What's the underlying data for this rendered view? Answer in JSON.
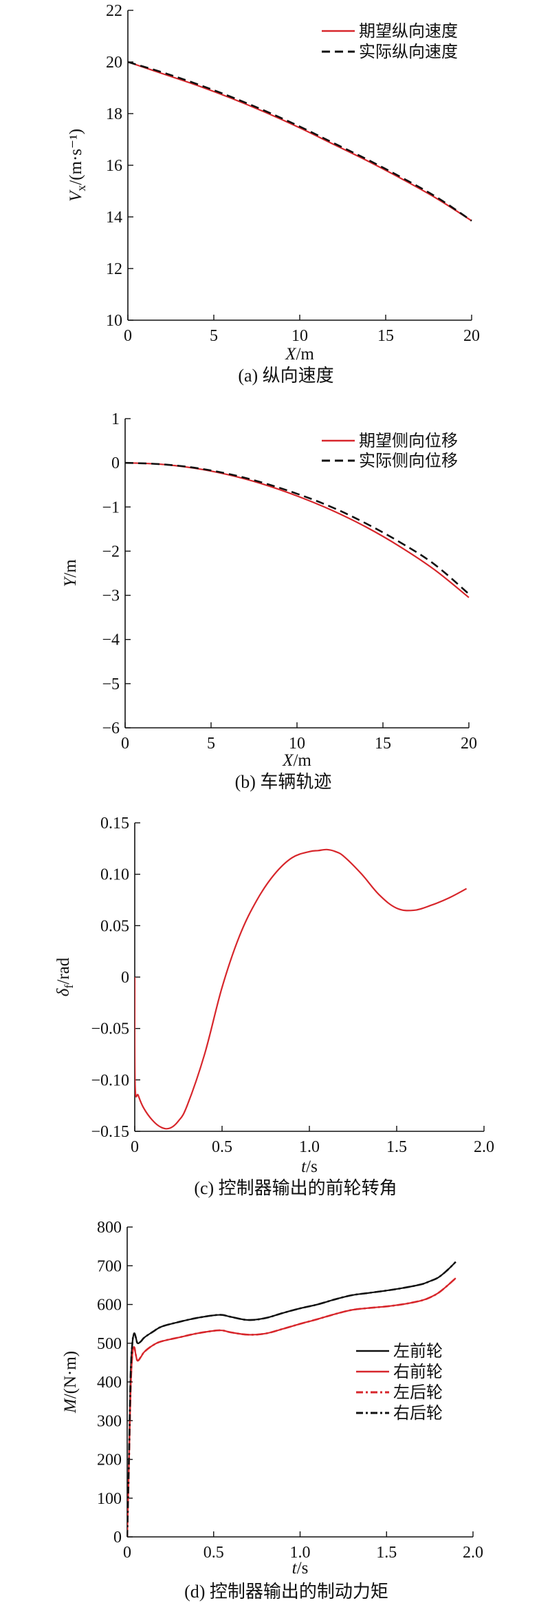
{
  "chart_data": [
    {
      "type": "line",
      "caption": "(a) 纵向速度",
      "xlabel": "X/m",
      "ylabel": "V_x/(m·s⁻¹)",
      "xlim": [
        0,
        20
      ],
      "ylim": [
        10,
        22
      ],
      "xticks": [
        0,
        5,
        10,
        15,
        20
      ],
      "yticks": [
        10,
        12,
        14,
        16,
        18,
        20,
        22
      ],
      "legend_position": "top-right",
      "series": [
        {
          "name": "期望纵向速度",
          "color": "#d7262b",
          "style": "solid",
          "x": [
            0,
            2,
            4,
            6,
            8,
            10,
            12,
            14,
            16,
            18,
            20
          ],
          "y": [
            20.0,
            19.55,
            19.1,
            18.6,
            18.05,
            17.45,
            16.8,
            16.15,
            15.45,
            14.7,
            13.85
          ]
        },
        {
          "name": "实际纵向速度",
          "color": "#111111",
          "style": "dashed",
          "x": [
            0,
            2,
            4,
            6,
            8,
            10,
            12,
            14,
            16,
            18,
            20
          ],
          "y": [
            20.0,
            19.6,
            19.15,
            18.65,
            18.1,
            17.5,
            16.85,
            16.2,
            15.5,
            14.75,
            13.85
          ]
        }
      ]
    },
    {
      "type": "line",
      "caption": "(b) 车辆轨迹",
      "xlabel": "X/m",
      "ylabel": "Y/m",
      "xlim": [
        0,
        20
      ],
      "ylim": [
        -6,
        1
      ],
      "xticks": [
        0,
        5,
        10,
        15,
        20
      ],
      "yticks": [
        -6,
        -5,
        -4,
        -3,
        -2,
        -1,
        0,
        1
      ],
      "legend_position": "top-right",
      "series": [
        {
          "name": "期望侧向位移",
          "color": "#d7262b",
          "style": "solid",
          "x": [
            0,
            2,
            4,
            6,
            8,
            10,
            12,
            14,
            16,
            18,
            20
          ],
          "y": [
            0,
            -0.03,
            -0.12,
            -0.27,
            -0.48,
            -0.75,
            -1.07,
            -1.45,
            -1.9,
            -2.42,
            -3.05
          ]
        },
        {
          "name": "实际侧向位移",
          "color": "#111111",
          "style": "dashed",
          "x": [
            0,
            2,
            4,
            6,
            8,
            10,
            12,
            14,
            16,
            18,
            20
          ],
          "y": [
            0,
            -0.03,
            -0.11,
            -0.25,
            -0.45,
            -0.7,
            -1.0,
            -1.37,
            -1.8,
            -2.3,
            -2.97
          ]
        }
      ]
    },
    {
      "type": "line",
      "caption": "(c) 控制器输出的前轮转角",
      "xlabel": "t/s",
      "ylabel": "δ_f/rad",
      "xlim": [
        0,
        2.0
      ],
      "ylim": [
        -0.15,
        0.15
      ],
      "xticks": [
        0,
        0.5,
        1.0,
        1.5,
        2.0
      ],
      "xtick_labels": [
        "0",
        "0.5",
        "1.0",
        "1.5",
        "2.0"
      ],
      "yticks": [
        -0.15,
        -0.1,
        -0.05,
        0,
        0.05,
        0.1,
        0.15
      ],
      "ytick_labels": [
        "−0.15",
        "−0.10",
        "−0.05",
        "0",
        "0.05",
        "0.10",
        "0.15"
      ],
      "series": [
        {
          "color": "#d7262b",
          "style": "solid",
          "x": [
            0,
            0.002,
            0.02,
            0.05,
            0.1,
            0.15,
            0.2,
            0.25,
            0.3,
            0.4,
            0.5,
            0.6,
            0.7,
            0.8,
            0.9,
            1.0,
            1.05,
            1.1,
            1.15,
            1.2,
            1.3,
            1.4,
            1.5,
            1.6,
            1.7,
            1.8,
            1.9
          ],
          "y": [
            0,
            -0.105,
            -0.115,
            -0.127,
            -0.139,
            -0.146,
            -0.147,
            -0.14,
            -0.125,
            -0.075,
            -0.01,
            0.04,
            0.075,
            0.1,
            0.116,
            0.122,
            0.123,
            0.124,
            0.122,
            0.117,
            0.1,
            0.08,
            0.067,
            0.065,
            0.07,
            0.077,
            0.086
          ]
        }
      ]
    },
    {
      "type": "line",
      "caption": "(d) 控制器输出的制动力矩",
      "xlabel": "t/s",
      "ylabel": "M/(N·m)",
      "xlim": [
        0,
        2.0
      ],
      "ylim": [
        0,
        800
      ],
      "xticks": [
        0,
        0.5,
        1.0,
        1.5,
        2.0
      ],
      "xtick_labels": [
        "0",
        "0.5",
        "1.0",
        "1.5",
        "2.0"
      ],
      "yticks": [
        0,
        100,
        200,
        300,
        400,
        500,
        600,
        700,
        800
      ],
      "legend_position": "right",
      "series": [
        {
          "name": "左前轮",
          "color": "#111111",
          "style": "solid",
          "x": [
            0,
            0.01,
            0.02,
            0.03,
            0.04,
            0.05,
            0.06,
            0.08,
            0.1,
            0.15,
            0.2,
            0.3,
            0.4,
            0.5,
            0.55,
            0.6,
            0.7,
            0.8,
            0.9,
            1.0,
            1.1,
            1.2,
            1.3,
            1.4,
            1.5,
            1.6,
            1.7,
            1.75,
            1.8,
            1.85,
            1.9
          ],
          "y": [
            0,
            200,
            420,
            500,
            525,
            515,
            500,
            505,
            515,
            530,
            543,
            555,
            565,
            572,
            573,
            568,
            560,
            565,
            578,
            590,
            600,
            613,
            624,
            630,
            636,
            643,
            652,
            660,
            670,
            688,
            710
          ]
        },
        {
          "name": "右前轮",
          "color": "#d7262b",
          "style": "solid",
          "x": [
            0,
            0.01,
            0.02,
            0.03,
            0.04,
            0.05,
            0.06,
            0.08,
            0.1,
            0.15,
            0.2,
            0.3,
            0.4,
            0.5,
            0.55,
            0.6,
            0.7,
            0.8,
            0.9,
            1.0,
            1.1,
            1.2,
            1.3,
            1.4,
            1.5,
            1.6,
            1.7,
            1.75,
            1.8,
            1.85,
            1.9
          ],
          "y": [
            0,
            180,
            380,
            470,
            490,
            470,
            455,
            465,
            478,
            495,
            505,
            515,
            525,
            532,
            533,
            528,
            522,
            525,
            537,
            550,
            562,
            575,
            586,
            591,
            595,
            601,
            610,
            618,
            630,
            648,
            668
          ]
        },
        {
          "name": "左后轮",
          "color": "#d7262b",
          "style": "dashdot",
          "x": [
            0,
            0.01,
            0.02,
            0.03,
            0.04,
            0.05,
            0.06,
            0.08,
            0.1,
            0.15,
            0.2,
            0.3,
            0.4,
            0.5,
            0.55,
            0.6,
            0.7,
            0.8,
            0.9,
            1.0,
            1.1,
            1.2,
            1.3,
            1.4,
            1.5,
            1.6,
            1.7,
            1.75,
            1.8,
            1.85,
            1.9
          ],
          "y": [
            0,
            180,
            380,
            470,
            490,
            470,
            455,
            465,
            478,
            495,
            505,
            515,
            525,
            532,
            533,
            528,
            522,
            525,
            537,
            550,
            562,
            575,
            586,
            591,
            595,
            601,
            610,
            618,
            630,
            648,
            668
          ]
        },
        {
          "name": "右后轮",
          "color": "#111111",
          "style": "dashdot",
          "x": [
            0,
            0.01,
            0.02,
            0.03,
            0.04,
            0.05,
            0.06,
            0.08,
            0.1,
            0.15,
            0.2,
            0.3,
            0.4,
            0.5,
            0.55,
            0.6,
            0.7,
            0.8,
            0.9,
            1.0,
            1.1,
            1.2,
            1.3,
            1.4,
            1.5,
            1.6,
            1.7,
            1.75,
            1.8,
            1.85,
            1.9
          ],
          "y": [
            0,
            200,
            420,
            500,
            525,
            515,
            500,
            505,
            515,
            530,
            543,
            555,
            565,
            572,
            573,
            568,
            560,
            565,
            578,
            590,
            600,
            613,
            624,
            630,
            636,
            643,
            652,
            660,
            670,
            688,
            710
          ]
        }
      ]
    }
  ]
}
